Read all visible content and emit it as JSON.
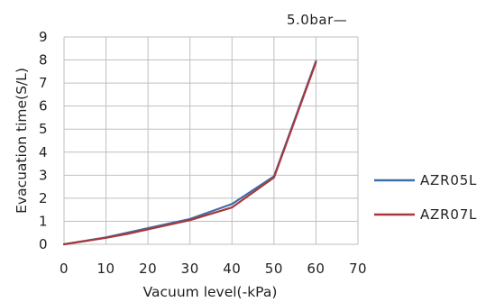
{
  "chart_data": {
    "type": "line",
    "title": "",
    "annotation": "5.0bar—",
    "xlabel": "Vacuum level(-kPa)",
    "ylabel": "Evacuation time(S/L)",
    "xlim": [
      0,
      70
    ],
    "ylim": [
      0,
      9
    ],
    "x_ticks": [
      "0",
      "10",
      "20",
      "30",
      "40",
      "50",
      "60",
      "70"
    ],
    "y_ticks": [
      "0",
      "1",
      "2",
      "3",
      "4",
      "5",
      "6",
      "7",
      "8",
      "9"
    ],
    "grid": true,
    "legend_position": "right",
    "series": [
      {
        "name": "AZR05L",
        "color": "#3f6ea8",
        "x": [
          0,
          10,
          15,
          20,
          30,
          40,
          50,
          60
        ],
        "y": [
          0,
          0.3,
          0.5,
          0.7,
          1.1,
          1.75,
          2.95,
          7.95
        ]
      },
      {
        "name": "AZR07L",
        "color": "#a8383c",
        "x": [
          0,
          10,
          15,
          20,
          30,
          40,
          50,
          60
        ],
        "y": [
          0,
          0.28,
          0.45,
          0.65,
          1.05,
          1.6,
          2.9,
          7.9
        ]
      }
    ]
  }
}
